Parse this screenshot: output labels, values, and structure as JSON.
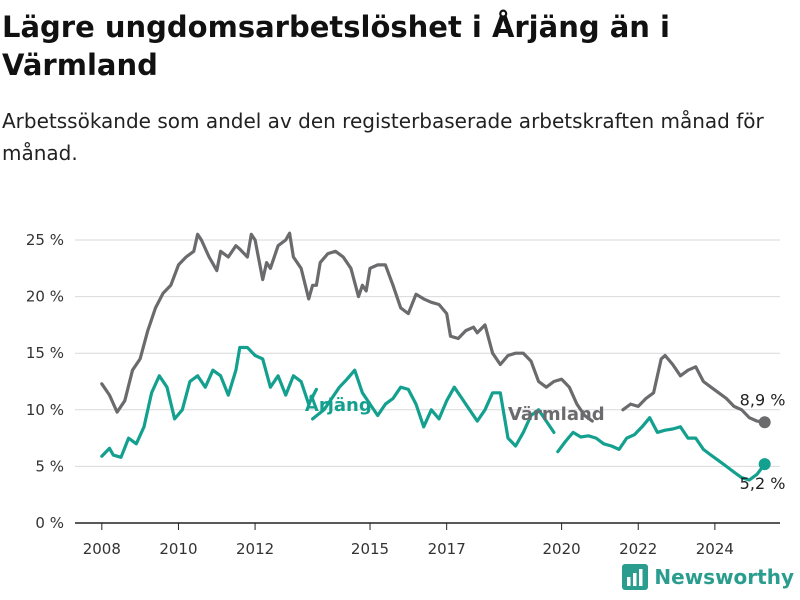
{
  "header": {
    "title": "Lägre ungdomsarbetslöshet i Årjäng än i Värmland",
    "subtitle": "Arbetssökande som andel av den registerbaserade arbetskraften månad för månad."
  },
  "brand": {
    "name": "Newsworthy",
    "icon": "bar-chart-logo-icon",
    "color": "#2a9d8f"
  },
  "colors": {
    "arjang": "#13a08f",
    "varmland": "#6b6b6e",
    "grid": "#d9d9d9",
    "axis": "#222222"
  },
  "chart_data": {
    "type": "line",
    "title": "Lägre ungdomsarbetslöshet i Årjäng än i Värmland",
    "subtitle": "Arbetssökande som andel av den registerbaserade arbetskraften månad för månad.",
    "xlabel": "",
    "ylabel": "",
    "xlim": [
      2007.3,
      2025.7
    ],
    "ylim": [
      0,
      25
    ],
    "grid": true,
    "x_ticks": [
      2008,
      2010,
      2012,
      2015,
      2017,
      2020,
      2022,
      2024
    ],
    "x_tick_labels": [
      "2008",
      "2010",
      "2012",
      "2015",
      "2017",
      "2020",
      "2022",
      "2024"
    ],
    "y_ticks": [
      0,
      5,
      10,
      15,
      20,
      25
    ],
    "y_tick_labels": [
      "0 %",
      "5 %",
      "10 %",
      "15 %",
      "20 %",
      "25 %"
    ],
    "series": [
      {
        "name": "Värmland",
        "color": "#6b6b6e",
        "end_label": "8,9 %",
        "points": [
          [
            2008.0,
            12.3
          ],
          [
            2008.2,
            11.3
          ],
          [
            2008.4,
            9.8
          ],
          [
            2008.6,
            10.8
          ],
          [
            2008.8,
            13.5
          ],
          [
            2009.0,
            14.5
          ],
          [
            2009.2,
            17.0
          ],
          [
            2009.4,
            19.0
          ],
          [
            2009.6,
            20.3
          ],
          [
            2009.8,
            21.0
          ],
          [
            2010.0,
            22.8
          ],
          [
            2010.2,
            23.5
          ],
          [
            2010.4,
            24.0
          ],
          [
            2010.5,
            25.5
          ],
          [
            2010.6,
            25.0
          ],
          [
            2010.8,
            23.5
          ],
          [
            2011.0,
            22.3
          ],
          [
            2011.1,
            24.0
          ],
          [
            2011.3,
            23.5
          ],
          [
            2011.5,
            24.5
          ],
          [
            2011.6,
            24.2
          ],
          [
            2011.8,
            23.5
          ],
          [
            2011.9,
            25.5
          ],
          [
            2012.0,
            25.0
          ],
          [
            2012.2,
            21.5
          ],
          [
            2012.3,
            23.0
          ],
          [
            2012.4,
            22.5
          ],
          [
            2012.6,
            24.5
          ],
          [
            2012.8,
            25.0
          ],
          [
            2012.9,
            25.6
          ],
          [
            2013.0,
            23.5
          ],
          [
            2013.2,
            22.5
          ],
          [
            2013.4,
            19.8
          ],
          [
            2013.5,
            21.0
          ],
          [
            2013.6,
            21.0
          ],
          [
            2013.7,
            23.0
          ],
          [
            2013.9,
            23.8
          ],
          [
            2014.1,
            24.0
          ],
          [
            2014.3,
            23.5
          ],
          [
            2014.5,
            22.5
          ],
          [
            2014.7,
            20.0
          ],
          [
            2014.8,
            21.0
          ],
          [
            2014.9,
            20.5
          ],
          [
            2015.0,
            22.5
          ],
          [
            2015.2,
            22.8
          ],
          [
            2015.4,
            22.8
          ],
          [
            2015.6,
            21.0
          ],
          [
            2015.8,
            19.0
          ],
          [
            2016.0,
            18.5
          ],
          [
            2016.2,
            20.2
          ],
          [
            2016.4,
            19.8
          ],
          [
            2016.6,
            19.5
          ],
          [
            2016.8,
            19.3
          ],
          [
            2017.0,
            18.5
          ],
          [
            2017.1,
            16.5
          ],
          [
            2017.3,
            16.3
          ],
          [
            2017.5,
            17.0
          ],
          [
            2017.7,
            17.3
          ],
          [
            2017.8,
            16.8
          ],
          [
            2018.0,
            17.5
          ],
          [
            2018.2,
            15.0
          ],
          [
            2018.4,
            14.0
          ],
          [
            2018.6,
            14.8
          ],
          [
            2018.8,
            15.0
          ],
          [
            2019.0,
            15.0
          ],
          [
            2019.2,
            14.3
          ],
          [
            2019.4,
            12.5
          ],
          [
            2019.6,
            12.0
          ],
          [
            2019.8,
            12.5
          ],
          [
            2020.0,
            12.7
          ],
          [
            2020.2,
            12.0
          ],
          [
            2020.4,
            10.5
          ],
          [
            2020.6,
            9.5
          ],
          [
            2020.8,
            9.0
          ]
        ],
        "points_tail": [
          [
            2021.6,
            10.0
          ],
          [
            2021.8,
            10.5
          ],
          [
            2022.0,
            10.3
          ],
          [
            2022.2,
            11.0
          ],
          [
            2022.4,
            11.5
          ],
          [
            2022.5,
            13.0
          ],
          [
            2022.6,
            14.5
          ],
          [
            2022.7,
            14.8
          ],
          [
            2022.9,
            14.0
          ],
          [
            2023.1,
            13.0
          ],
          [
            2023.3,
            13.5
          ],
          [
            2023.5,
            13.8
          ],
          [
            2023.7,
            12.5
          ],
          [
            2023.9,
            12.0
          ],
          [
            2024.1,
            11.5
          ],
          [
            2024.3,
            11.0
          ],
          [
            2024.5,
            10.3
          ],
          [
            2024.7,
            10.0
          ],
          [
            2024.9,
            9.3
          ],
          [
            2025.1,
            9.0
          ],
          [
            2025.3,
            8.9
          ]
        ]
      },
      {
        "name": "Årjäng",
        "color": "#13a08f",
        "end_label": "5,2 %",
        "points": [
          [
            2008.0,
            5.9
          ],
          [
            2008.2,
            6.6
          ],
          [
            2008.3,
            6.0
          ],
          [
            2008.5,
            5.8
          ],
          [
            2008.7,
            7.5
          ],
          [
            2008.9,
            7.0
          ],
          [
            2009.1,
            8.5
          ],
          [
            2009.3,
            11.5
          ],
          [
            2009.5,
            13.0
          ],
          [
            2009.7,
            12.0
          ],
          [
            2009.9,
            9.2
          ],
          [
            2010.1,
            10.0
          ],
          [
            2010.3,
            12.5
          ],
          [
            2010.5,
            13.0
          ],
          [
            2010.7,
            12.0
          ],
          [
            2010.9,
            13.5
          ],
          [
            2011.1,
            13.0
          ],
          [
            2011.3,
            11.3
          ],
          [
            2011.5,
            13.5
          ],
          [
            2011.6,
            15.5
          ],
          [
            2011.8,
            15.5
          ],
          [
            2012.0,
            14.8
          ],
          [
            2012.2,
            14.5
          ],
          [
            2012.4,
            12.0
          ],
          [
            2012.6,
            13.0
          ],
          [
            2012.8,
            11.3
          ],
          [
            2013.0,
            13.0
          ],
          [
            2013.2,
            12.5
          ],
          [
            2013.4,
            10.5
          ],
          [
            2013.6,
            11.8
          ]
        ],
        "points_mid": [
          [
            2013.5,
            9.2
          ],
          [
            2013.8,
            10.0
          ],
          [
            2014.0,
            11.0
          ],
          [
            2014.2,
            12.0
          ],
          [
            2014.4,
            12.7
          ],
          [
            2014.6,
            13.5
          ],
          [
            2014.8,
            11.5
          ],
          [
            2015.0,
            10.5
          ],
          [
            2015.2,
            9.5
          ],
          [
            2015.4,
            10.5
          ],
          [
            2015.6,
            11.0
          ],
          [
            2015.8,
            12.0
          ],
          [
            2016.0,
            11.8
          ],
          [
            2016.2,
            10.5
          ],
          [
            2016.4,
            8.5
          ],
          [
            2016.6,
            10.0
          ],
          [
            2016.8,
            9.2
          ],
          [
            2017.0,
            10.8
          ],
          [
            2017.2,
            12.0
          ],
          [
            2017.4,
            11.0
          ],
          [
            2017.6,
            10.0
          ],
          [
            2017.8,
            9.0
          ],
          [
            2018.0,
            10.0
          ],
          [
            2018.2,
            11.5
          ],
          [
            2018.4,
            11.5
          ],
          [
            2018.6,
            7.5
          ],
          [
            2018.8,
            6.8
          ],
          [
            2019.0,
            8.0
          ],
          [
            2019.2,
            9.5
          ],
          [
            2019.4,
            10.0
          ],
          [
            2019.6,
            9.0
          ],
          [
            2019.8,
            8.0
          ]
        ],
        "points_tail": [
          [
            2019.9,
            6.3
          ],
          [
            2020.1,
            7.2
          ],
          [
            2020.3,
            8.0
          ],
          [
            2020.5,
            7.6
          ],
          [
            2020.7,
            7.7
          ],
          [
            2020.9,
            7.5
          ],
          [
            2021.1,
            7.0
          ],
          [
            2021.3,
            6.8
          ],
          [
            2021.5,
            6.5
          ],
          [
            2021.7,
            7.5
          ],
          [
            2021.9,
            7.8
          ],
          [
            2022.1,
            8.5
          ],
          [
            2022.3,
            9.3
          ],
          [
            2022.5,
            8.0
          ],
          [
            2022.7,
            8.2
          ],
          [
            2022.9,
            8.3
          ],
          [
            2023.1,
            8.5
          ],
          [
            2023.3,
            7.5
          ],
          [
            2023.5,
            7.5
          ],
          [
            2023.7,
            6.5
          ],
          [
            2023.9,
            6.0
          ],
          [
            2024.1,
            5.5
          ],
          [
            2024.3,
            5.0
          ],
          [
            2024.5,
            4.5
          ],
          [
            2024.7,
            4.0
          ],
          [
            2024.9,
            3.8
          ],
          [
            2025.1,
            4.3
          ],
          [
            2025.3,
            5.2
          ]
        ]
      }
    ]
  }
}
